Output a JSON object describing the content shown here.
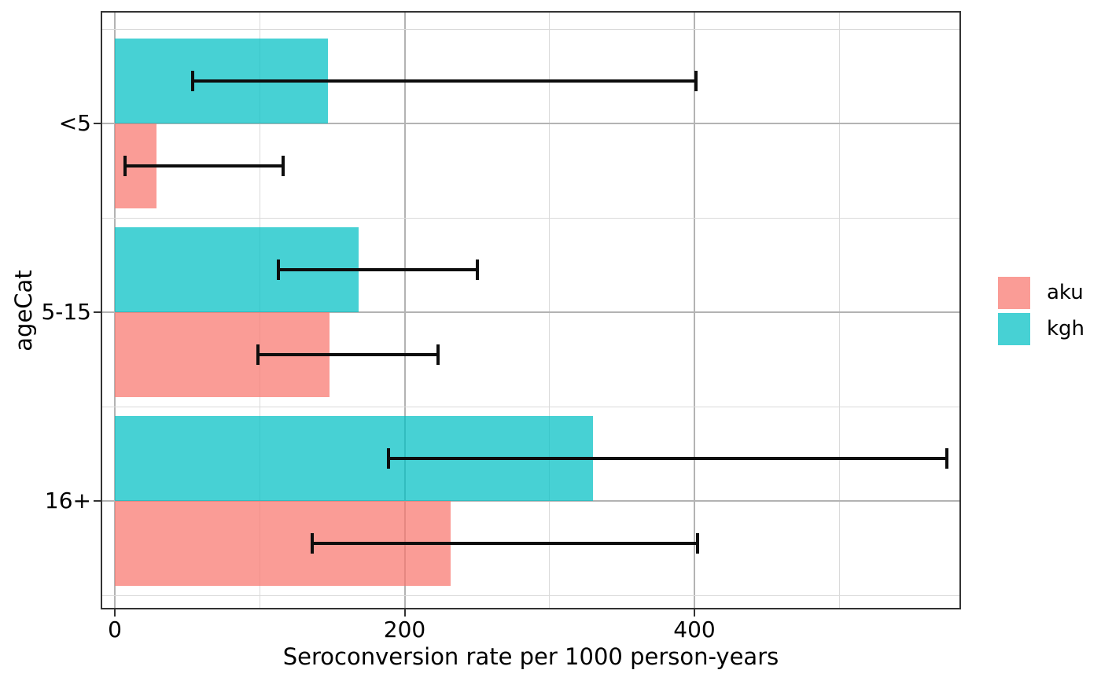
{
  "figure": {
    "background": "#ffffff",
    "panel_border_color": "#333333",
    "grid_major_color": "#b3b3b3",
    "grid_minor_color": "#dadada"
  },
  "chart_data": {
    "type": "bar",
    "orientation": "horizontal",
    "title": "",
    "xlabel": "Seroconversion rate per 1000 person-years",
    "ylabel": "ageCat",
    "categories": [
      "<5",
      "5-15",
      "16+"
    ],
    "series": [
      {
        "name": "kgh",
        "base_color": "#00BFC4",
        "fill": "rgba(0,191,196,0.72)",
        "values": [
          147,
          168,
          330
        ],
        "ci_low": [
          54,
          113,
          189
        ],
        "ci_high": [
          401,
          250,
          574
        ]
      },
      {
        "name": "aku",
        "base_color": "#F8766D",
        "fill": "rgba(248,118,109,0.72)",
        "values": [
          29,
          148,
          232
        ],
        "ci_low": [
          7,
          99,
          136
        ],
        "ci_high": [
          116,
          223,
          402
        ]
      }
    ],
    "error_bars": true,
    "error_bar_color": "#0d0d0d",
    "x_ticks": [
      0,
      200,
      400
    ],
    "x_tick_labels": [
      "0",
      "200",
      "400"
    ],
    "x_minor_gridlines": [
      100,
      300,
      500
    ],
    "xlim": [
      -9,
      583
    ],
    "grid": true,
    "legend": {
      "position": "right",
      "title": "",
      "entries": [
        {
          "label": "aku",
          "fill": "rgba(248,118,109,0.72)"
        },
        {
          "label": "kgh",
          "fill": "rgba(0,191,196,0.72)"
        }
      ]
    }
  }
}
